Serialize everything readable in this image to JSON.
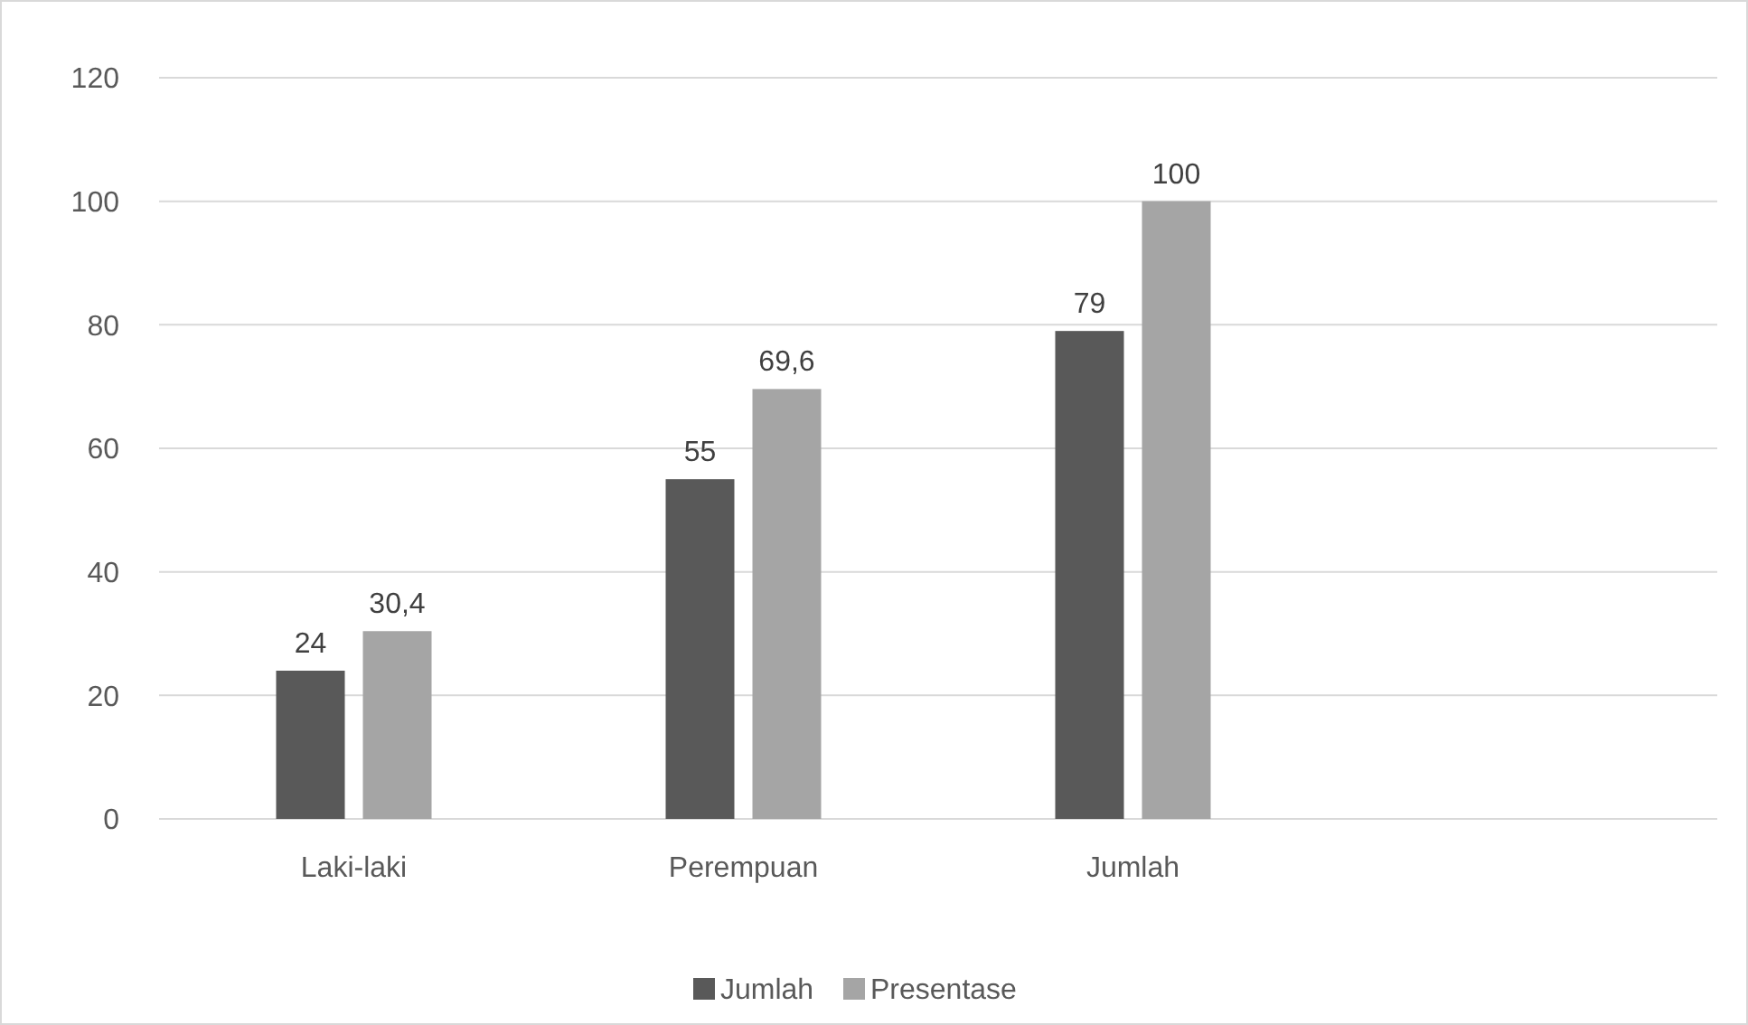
{
  "chart_data": {
    "type": "bar",
    "categories": [
      "Laki-laki",
      "Perempuan",
      "Jumlah",
      null
    ],
    "series": [
      {
        "name": "Jumlah",
        "color": "#595959",
        "values": [
          24,
          55,
          79,
          null
        ],
        "value_labels": [
          "24",
          "55",
          "79",
          null
        ]
      },
      {
        "name": "Presentase",
        "color": "#a5a5a5",
        "values": [
          30.4,
          69.6,
          100,
          null
        ],
        "value_labels": [
          "30,4",
          "69,6",
          "100",
          null
        ]
      }
    ],
    "ylim": [
      0,
      120
    ],
    "yticks": [
      0,
      20,
      40,
      60,
      80,
      100,
      120
    ],
    "grid": "y",
    "legend": "bottom"
  }
}
